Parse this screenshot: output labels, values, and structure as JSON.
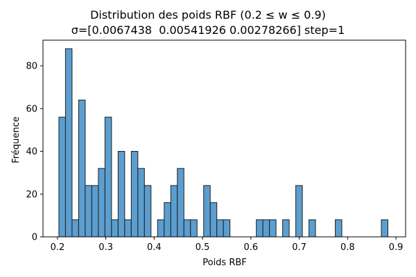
{
  "chart_data": {
    "type": "bar",
    "title_line1": "Distribution des poids RBF (0.2 ≤ w ≤ 0.9)",
    "title_line2": "σ=[0.0067438  0.00541926 0.00278266] step=1",
    "xlabel": "Poids RBF",
    "ylabel": "Fréquence",
    "xlim": [
      0.17,
      0.92
    ],
    "ylim": [
      0,
      92
    ],
    "xticks": [
      "0.2",
      "0.3",
      "0.4",
      "0.5",
      "0.6",
      "0.7",
      "0.8",
      "0.9"
    ],
    "xtick_values": [
      0.2,
      0.3,
      0.4,
      0.5,
      0.6,
      0.7,
      0.8,
      0.9
    ],
    "yticks": [
      "0",
      "20",
      "40",
      "60",
      "80"
    ],
    "ytick_values": [
      0,
      20,
      40,
      60,
      80
    ],
    "bin_start": 0.2029,
    "bin_width": 0.01361,
    "counts": [
      56,
      88,
      8,
      64,
      24,
      24,
      32,
      56,
      8,
      40,
      8,
      40,
      32,
      24,
      0,
      8,
      16,
      24,
      32,
      8,
      8,
      0,
      24,
      16,
      8,
      8,
      0,
      0,
      0,
      0,
      8,
      8,
      8,
      0,
      8,
      0,
      24,
      0,
      8,
      0,
      0,
      0,
      8,
      0,
      0,
      0,
      0,
      0,
      0,
      8
    ],
    "bar_color": "#5b9ecf",
    "edge_color": "#1f1f1f",
    "grid": false
  }
}
